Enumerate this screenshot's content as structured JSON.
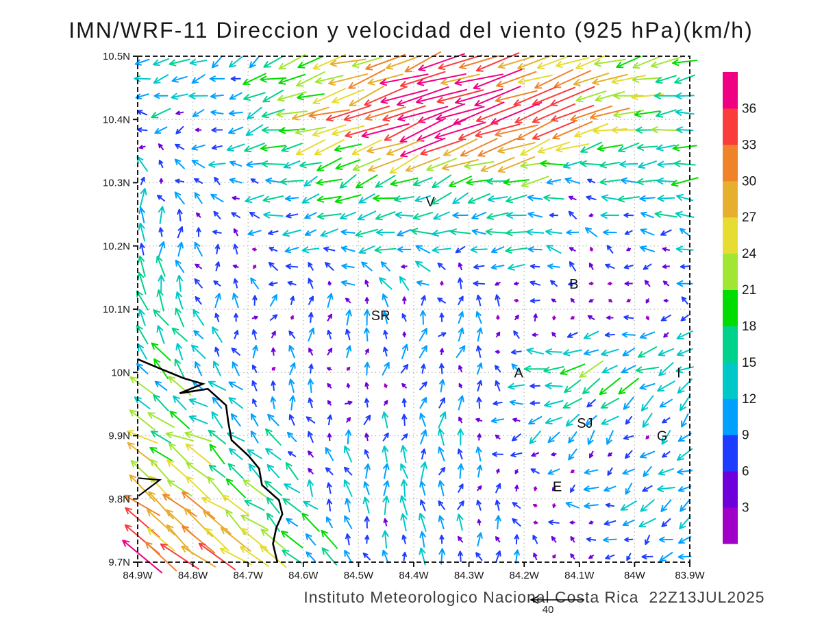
{
  "title": "IMN/WRF-11 Direccion y velocidad del viento (925 hPa)(km/h)",
  "footer_credit": "Instituto Meteorologico Nacional Costa Rica  22Z13JUL2025",
  "chart_data": {
    "type": "vector_field",
    "title": "IMN/WRF-11 Direccion y velocidad del viento (925 hPa)(km/h)",
    "model": "IMN/WRF-11",
    "variable": "Direccion y velocidad del viento",
    "level": "925 hPa",
    "units": "km/h",
    "valid_time": "22Z13JUL2025",
    "source": "Instituto Meteorologico Nacional Costa Rica",
    "x_ticks": [
      "84.9W",
      "84.8W",
      "84.7W",
      "84.6W",
      "84.5W",
      "84.4W",
      "84.3W",
      "84.2W",
      "84.1W",
      "84W",
      "83.9W"
    ],
    "y_ticks": [
      "10.5N",
      "10.4N",
      "10.3N",
      "10.2N",
      "10.1N",
      "10N",
      "9.9N",
      "9.8N",
      "9.7N"
    ],
    "lon_range": [
      -84.9,
      -83.9
    ],
    "lat_range": [
      9.7,
      10.5
    ],
    "grid_style": "dotted",
    "colorbar": {
      "levels": [
        3,
        6,
        9,
        12,
        15,
        18,
        21,
        24,
        27,
        30,
        33,
        36
      ],
      "colors_bottom_to_top": [
        "#A000C8",
        "#6E00DC",
        "#1E3CFF",
        "#00A0FF",
        "#00C8C8",
        "#00D28C",
        "#00DC00",
        "#A0E632",
        "#E6DC32",
        "#E6AF2D",
        "#F08228",
        "#FA3C3C",
        "#F00082"
      ]
    },
    "reference_arrow": {
      "label": "40",
      "speed_kmh": 40
    },
    "stations": [
      {
        "id": "V",
        "lon": -84.37,
        "lat": 10.27
      },
      {
        "id": "SR",
        "lon": -84.46,
        "lat": 10.09
      },
      {
        "id": "B",
        "lon": -84.11,
        "lat": 10.14
      },
      {
        "id": "A",
        "lon": -84.21,
        "lat": 10.0
      },
      {
        "id": "I",
        "lon": -83.92,
        "lat": 10.0
      },
      {
        "id": "SJ",
        "lon": -84.09,
        "lat": 9.92
      },
      {
        "id": "G",
        "lon": -83.95,
        "lat": 9.9
      },
      {
        "id": "E",
        "lon": -84.14,
        "lat": 9.82
      }
    ],
    "coastline_lonlat": [
      [
        -84.9,
        10.021
      ],
      [
        -84.862,
        10.007
      ],
      [
        -84.817,
        9.991
      ],
      [
        -84.782,
        9.982
      ],
      [
        -84.824,
        9.967
      ],
      [
        -84.773,
        9.974
      ],
      [
        -84.74,
        9.948
      ],
      [
        -84.736,
        9.922
      ],
      [
        -84.73,
        9.893
      ],
      [
        -84.699,
        9.868
      ],
      [
        -84.68,
        9.848
      ],
      [
        -84.675,
        9.822
      ],
      [
        -84.644,
        9.798
      ],
      [
        -84.638,
        9.776
      ],
      [
        -84.649,
        9.754
      ],
      [
        -84.655,
        9.729
      ],
      [
        -84.647,
        9.7
      ]
    ],
    "cape_lonlat": [
      [
        -84.9,
        9.833
      ],
      [
        -84.86,
        9.83
      ],
      [
        -84.898,
        9.805
      ]
    ],
    "wind_grid": {
      "lons": [
        -84.9,
        -84.8,
        -84.7,
        -84.6,
        -84.5,
        -84.4,
        -84.3,
        -84.2,
        -84.1,
        -84.0,
        -83.9
      ],
      "lats": [
        10.5,
        10.4,
        10.3,
        10.2,
        10.1,
        10.0,
        9.9,
        9.8,
        9.7
      ],
      "u_kmh": [
        [
          -8,
          -9,
          -8,
          -14,
          -22,
          -28,
          -28,
          -26,
          -22,
          -18,
          -15
        ],
        [
          -8,
          -6,
          -12,
          -22,
          -30,
          -36,
          -35,
          -33,
          -28,
          -19,
          -14
        ],
        [
          2,
          -3,
          -7,
          -11,
          -14,
          -15,
          -15,
          -16,
          -4,
          -14,
          -15
        ],
        [
          3,
          2,
          -4,
          -9,
          -12,
          -10,
          -8,
          -14,
          0,
          -6,
          -8
        ],
        [
          -6,
          0,
          4,
          4,
          2,
          2,
          4,
          3,
          -3,
          2,
          -4
        ],
        [
          -10,
          -8,
          -2,
          2,
          4,
          4,
          5,
          -10,
          -12,
          -13,
          -12
        ],
        [
          -16,
          -14,
          -8,
          0,
          3,
          2,
          4,
          -8,
          -4,
          -3,
          -6
        ],
        [
          -20,
          -18,
          -14,
          -6,
          0,
          2,
          3,
          0,
          -5,
          -8,
          -6
        ],
        [
          -24,
          -23,
          -18,
          -10,
          -2,
          0,
          2,
          2,
          -2,
          -4,
          -4
        ]
      ],
      "v_kmh": [
        [
          -1,
          -2,
          -2,
          -4,
          -6,
          -8,
          -7,
          -6,
          -5,
          -3,
          -2
        ],
        [
          1,
          0,
          -2,
          -4,
          -10,
          -12,
          -12,
          -11,
          -8,
          -1,
          0
        ],
        [
          13,
          6,
          2,
          -2,
          -4,
          -4,
          -3,
          -2,
          7,
          1,
          1
        ],
        [
          14,
          10,
          4,
          1,
          1,
          3,
          2,
          1,
          8,
          2,
          4
        ],
        [
          16,
          12,
          8,
          8,
          12,
          13,
          9,
          6,
          3,
          4,
          4
        ],
        [
          14,
          12,
          10,
          8,
          7,
          8,
          7,
          6,
          -6,
          -5,
          -6
        ],
        [
          14,
          12,
          10,
          10,
          10,
          12,
          10,
          -4,
          -5,
          -4,
          -3
        ],
        [
          20,
          18,
          14,
          10,
          12,
          12,
          12,
          6,
          2,
          -2,
          -4
        ],
        [
          24,
          22,
          18,
          14,
          12,
          12,
          10,
          8,
          4,
          2,
          0
        ]
      ]
    },
    "arrow_grid": {
      "cols": 30,
      "rows": 30
    },
    "noise_kmh": 2.4
  }
}
